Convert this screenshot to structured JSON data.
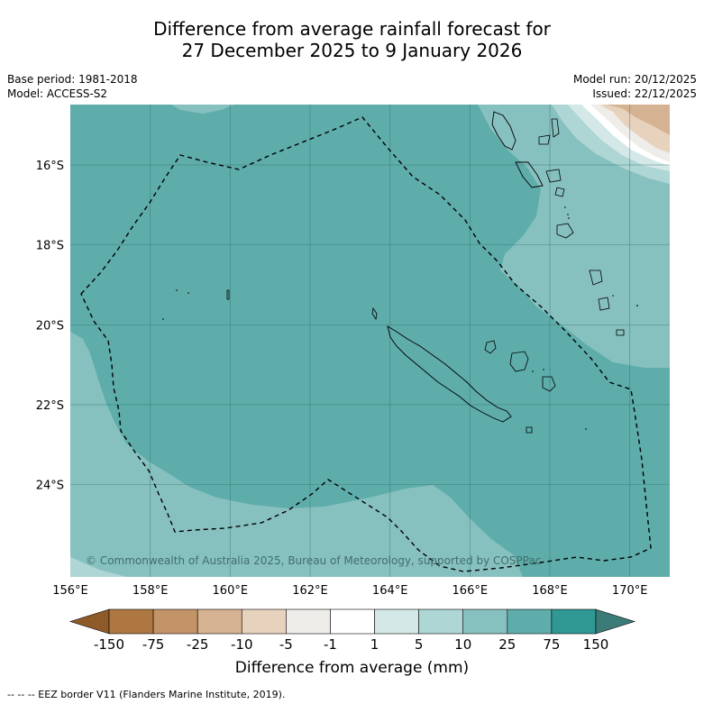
{
  "title": {
    "line1": "Difference from average rainfall forecast for",
    "line2": "27 December 2025 to 9 January 2026"
  },
  "meta": {
    "base_period": "Base period: 1981-2018",
    "model": "Model: ACCESS-S2",
    "model_run": "Model run: 20/12/2025",
    "issued": "Issued: 22/12/2025"
  },
  "map": {
    "lon_labels": [
      "156°E",
      "158°E",
      "160°E",
      "162°E",
      "164°E",
      "166°E",
      "168°E",
      "170°E"
    ],
    "lat_labels": [
      "16°S",
      "18°S",
      "20°S",
      "22°S",
      "24°S"
    ],
    "copyright": "© Commonwealth of Australia 2025, Bureau of Meteorology, supported by COSPPac"
  },
  "colorbar": {
    "labels": [
      "-150",
      "-75",
      "-25",
      "-10",
      "-5",
      "-1",
      "1",
      "5",
      "10",
      "25",
      "75",
      "150"
    ],
    "colors": [
      "#ae7741",
      "#c39467",
      "#d5b291",
      "#e6d2bd",
      "#efede9",
      "#ffffff",
      "#d4e9e7",
      "#aed6d5",
      "#87c1bf",
      "#5eadab",
      "#2f9893"
    ],
    "extend_low_color": "#8f5a2a",
    "extend_high_color": "#3b7b78",
    "title": "Difference from average (mm)"
  },
  "legend": {
    "eez": "-- -- -- EEZ border V11 (Flanders Marine Institute, 2019)."
  }
}
